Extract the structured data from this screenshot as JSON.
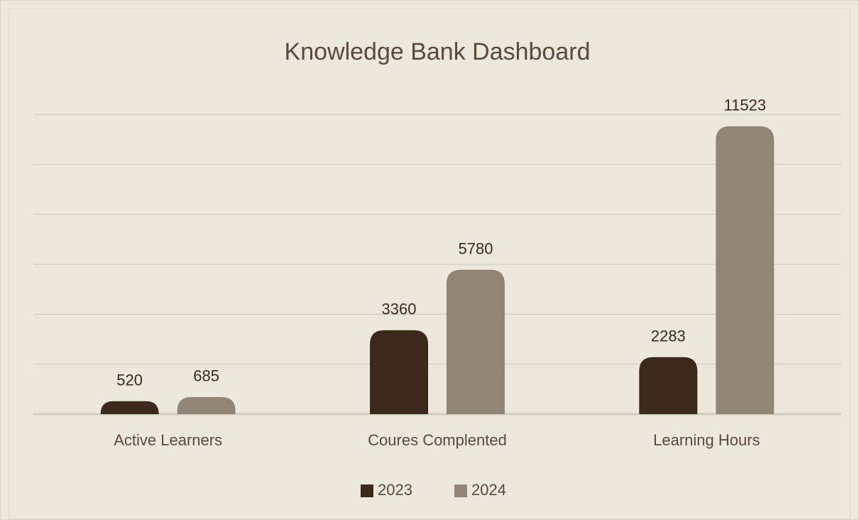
{
  "chart_data": {
    "type": "bar",
    "title": "Knowledge Bank Dashboard",
    "categories": [
      "Active Learners",
      "Coures Complented",
      "Learning Hours"
    ],
    "series": [
      {
        "name": "2023",
        "color": "#3b2a1a",
        "values": [
          520,
          3360,
          2283
        ]
      },
      {
        "name": "2024",
        "color": "#918676",
        "values": [
          685,
          5780,
          11523
        ]
      }
    ],
    "ylim": [
      0,
      12000
    ],
    "yticks": [
      0,
      2000,
      4000,
      6000,
      8000,
      10000,
      12000
    ],
    "grid": true,
    "legend": "bottom"
  }
}
